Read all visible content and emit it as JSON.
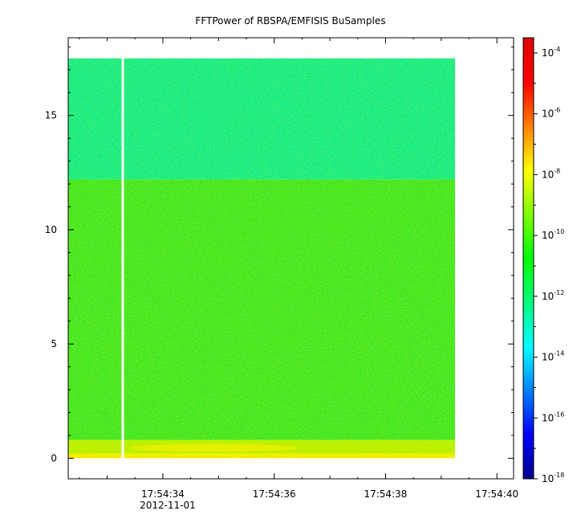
{
  "chart_data": {
    "type": "heatmap",
    "title": "FFTPower of RBSPA/EMFISIS  BuSamples",
    "xlabel": "",
    "ylabel": "",
    "x_ticks": [
      "17:54:34",
      "17:54:36",
      "17:54:38",
      "17:54:40"
    ],
    "x_tick_values_s": [
      34,
      36,
      38,
      40
    ],
    "x_date_label": "2012-11-01",
    "xlim_s": [
      32.3,
      40.3
    ],
    "data_x_range_s": [
      32.3,
      39.25
    ],
    "gap_x_s": 33.28,
    "y_ticks": [
      0,
      5,
      10,
      15
    ],
    "ylim": [
      -0.9,
      18.4
    ],
    "data_y_range": [
      0,
      17.5
    ],
    "colorbar": {
      "scale": "log",
      "range": [
        -18,
        -3.5
      ],
      "tick_base": "10",
      "tick_exponents": [
        "-18",
        "-16",
        "-14",
        "-12",
        "-10",
        "-8",
        "-6",
        "-4"
      ],
      "colormap": [
        "#00008c",
        "#0000ff",
        "#0080ff",
        "#00ffff",
        "#00ff80",
        "#00ff00",
        "#80ff00",
        "#ffff00",
        "#ff8000",
        "#ff0000",
        "#dc0000"
      ]
    },
    "bands": [
      {
        "y_from": 0,
        "y_to": 0.2,
        "level_log10": -8.5,
        "color": "#f4ee00"
      },
      {
        "y_from": 0.2,
        "y_to": 0.8,
        "level_log10": -9.5,
        "color": "#b8f000"
      },
      {
        "y_from": 0.8,
        "y_to": 12.2,
        "level_log10": -10.3,
        "color": "#3fe626"
      },
      {
        "y_from": 12.2,
        "y_to": 17.5,
        "level_log10": -12.0,
        "color": "#10ec8c"
      }
    ]
  }
}
